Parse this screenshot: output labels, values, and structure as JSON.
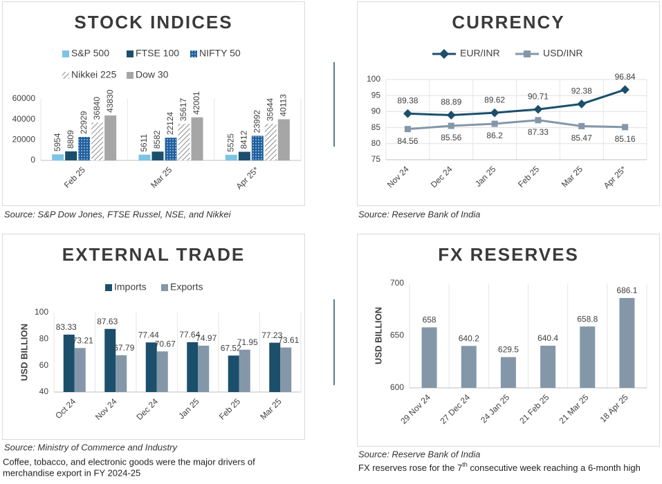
{
  "chart_data": [
    {
      "type": "bar",
      "title": "STOCK INDICES",
      "categories": [
        "Feb 25",
        "Mar 25",
        "Apr 25*"
      ],
      "series": [
        {
          "name": "S&P 500",
          "color": "#7cc4e4",
          "values": [
            5954,
            5611,
            5525
          ]
        },
        {
          "name": "FTSE 100",
          "color": "#1b4f6b",
          "values": [
            8809,
            8582,
            8412
          ]
        },
        {
          "name": "NIFTY 50",
          "color": "#1f5f9f",
          "pattern": "dots",
          "values": [
            22929,
            22124,
            23992
          ]
        },
        {
          "name": "Nikkei 225",
          "color": "#8a8a8a",
          "pattern": "hatch",
          "values": [
            36840,
            35617,
            35644
          ]
        },
        {
          "name": "Dow 30",
          "color": "#a6a6a6",
          "values": [
            43830,
            42001,
            40113
          ]
        }
      ],
      "ylim": [
        0,
        60000
      ],
      "yticks": [
        0,
        20000,
        40000,
        60000
      ],
      "grid": false,
      "source": "Source: S&P Dow Jones, FTSE Russel, NSE, and Nikkei"
    },
    {
      "type": "line",
      "title": "CURRENCY",
      "categories": [
        "Nov 24",
        "Dec 24",
        "Jan 25",
        "Feb 25",
        "Mar 25",
        "Apr 25*"
      ],
      "series": [
        {
          "name": "EUR/INR",
          "color": "#1b4f6b",
          "values": [
            89.38,
            88.89,
            89.62,
            90.71,
            92.38,
            96.84
          ]
        },
        {
          "name": "USD/INR",
          "color": "#8497a8",
          "values": [
            84.56,
            85.56,
            86.2,
            87.33,
            85.47,
            85.16
          ]
        }
      ],
      "ylim": [
        75,
        100
      ],
      "yticks": [
        75,
        80,
        85,
        90,
        95,
        100
      ],
      "grid": true,
      "source": "Source: Reserve Bank of India"
    },
    {
      "type": "bar",
      "title": "EXTERNAL TRADE",
      "y_label": "USD BILLION",
      "categories": [
        "Oct 24",
        "Nov 24",
        "Dec 24",
        "Jan 25",
        "Feb 25",
        "Mar 25"
      ],
      "series": [
        {
          "name": "Imports",
          "color": "#1b4f6b",
          "values": [
            83.33,
            87.63,
            77.44,
            77.64,
            67.52,
            77.23
          ]
        },
        {
          "name": "Exports",
          "color": "#8497a8",
          "values": [
            73.21,
            67.79,
            70.67,
            74.97,
            71.95,
            73.61
          ]
        }
      ],
      "ylim": [
        40,
        100
      ],
      "yticks": [
        40,
        60,
        80,
        100
      ],
      "grid": false,
      "source": "Source: Ministry of Commerce and Industry",
      "note": [
        "Coffee, tobacco, and electronic goods were the major drivers of",
        "merchandise export in FY 2024-25"
      ]
    },
    {
      "type": "bar",
      "title": "FX RESERVES",
      "y_label": "USD BILLION",
      "categories": [
        "29 Nov 24",
        "27 Dec 24",
        "24 Jan 25",
        "21 Feb 25",
        "21 Mar 25",
        "18 Apr 25"
      ],
      "values": [
        658,
        640.2,
        629.5,
        640.4,
        658.8,
        686.1
      ],
      "color": "#8497a8",
      "ylim": [
        600,
        700
      ],
      "yticks": [
        600,
        650,
        700
      ],
      "grid": false,
      "source": "Source: Reserve Bank of India",
      "note": [
        "FX reserves rose for the 7",
        "th",
        " consecutive week reaching a 6-month high"
      ]
    }
  ]
}
